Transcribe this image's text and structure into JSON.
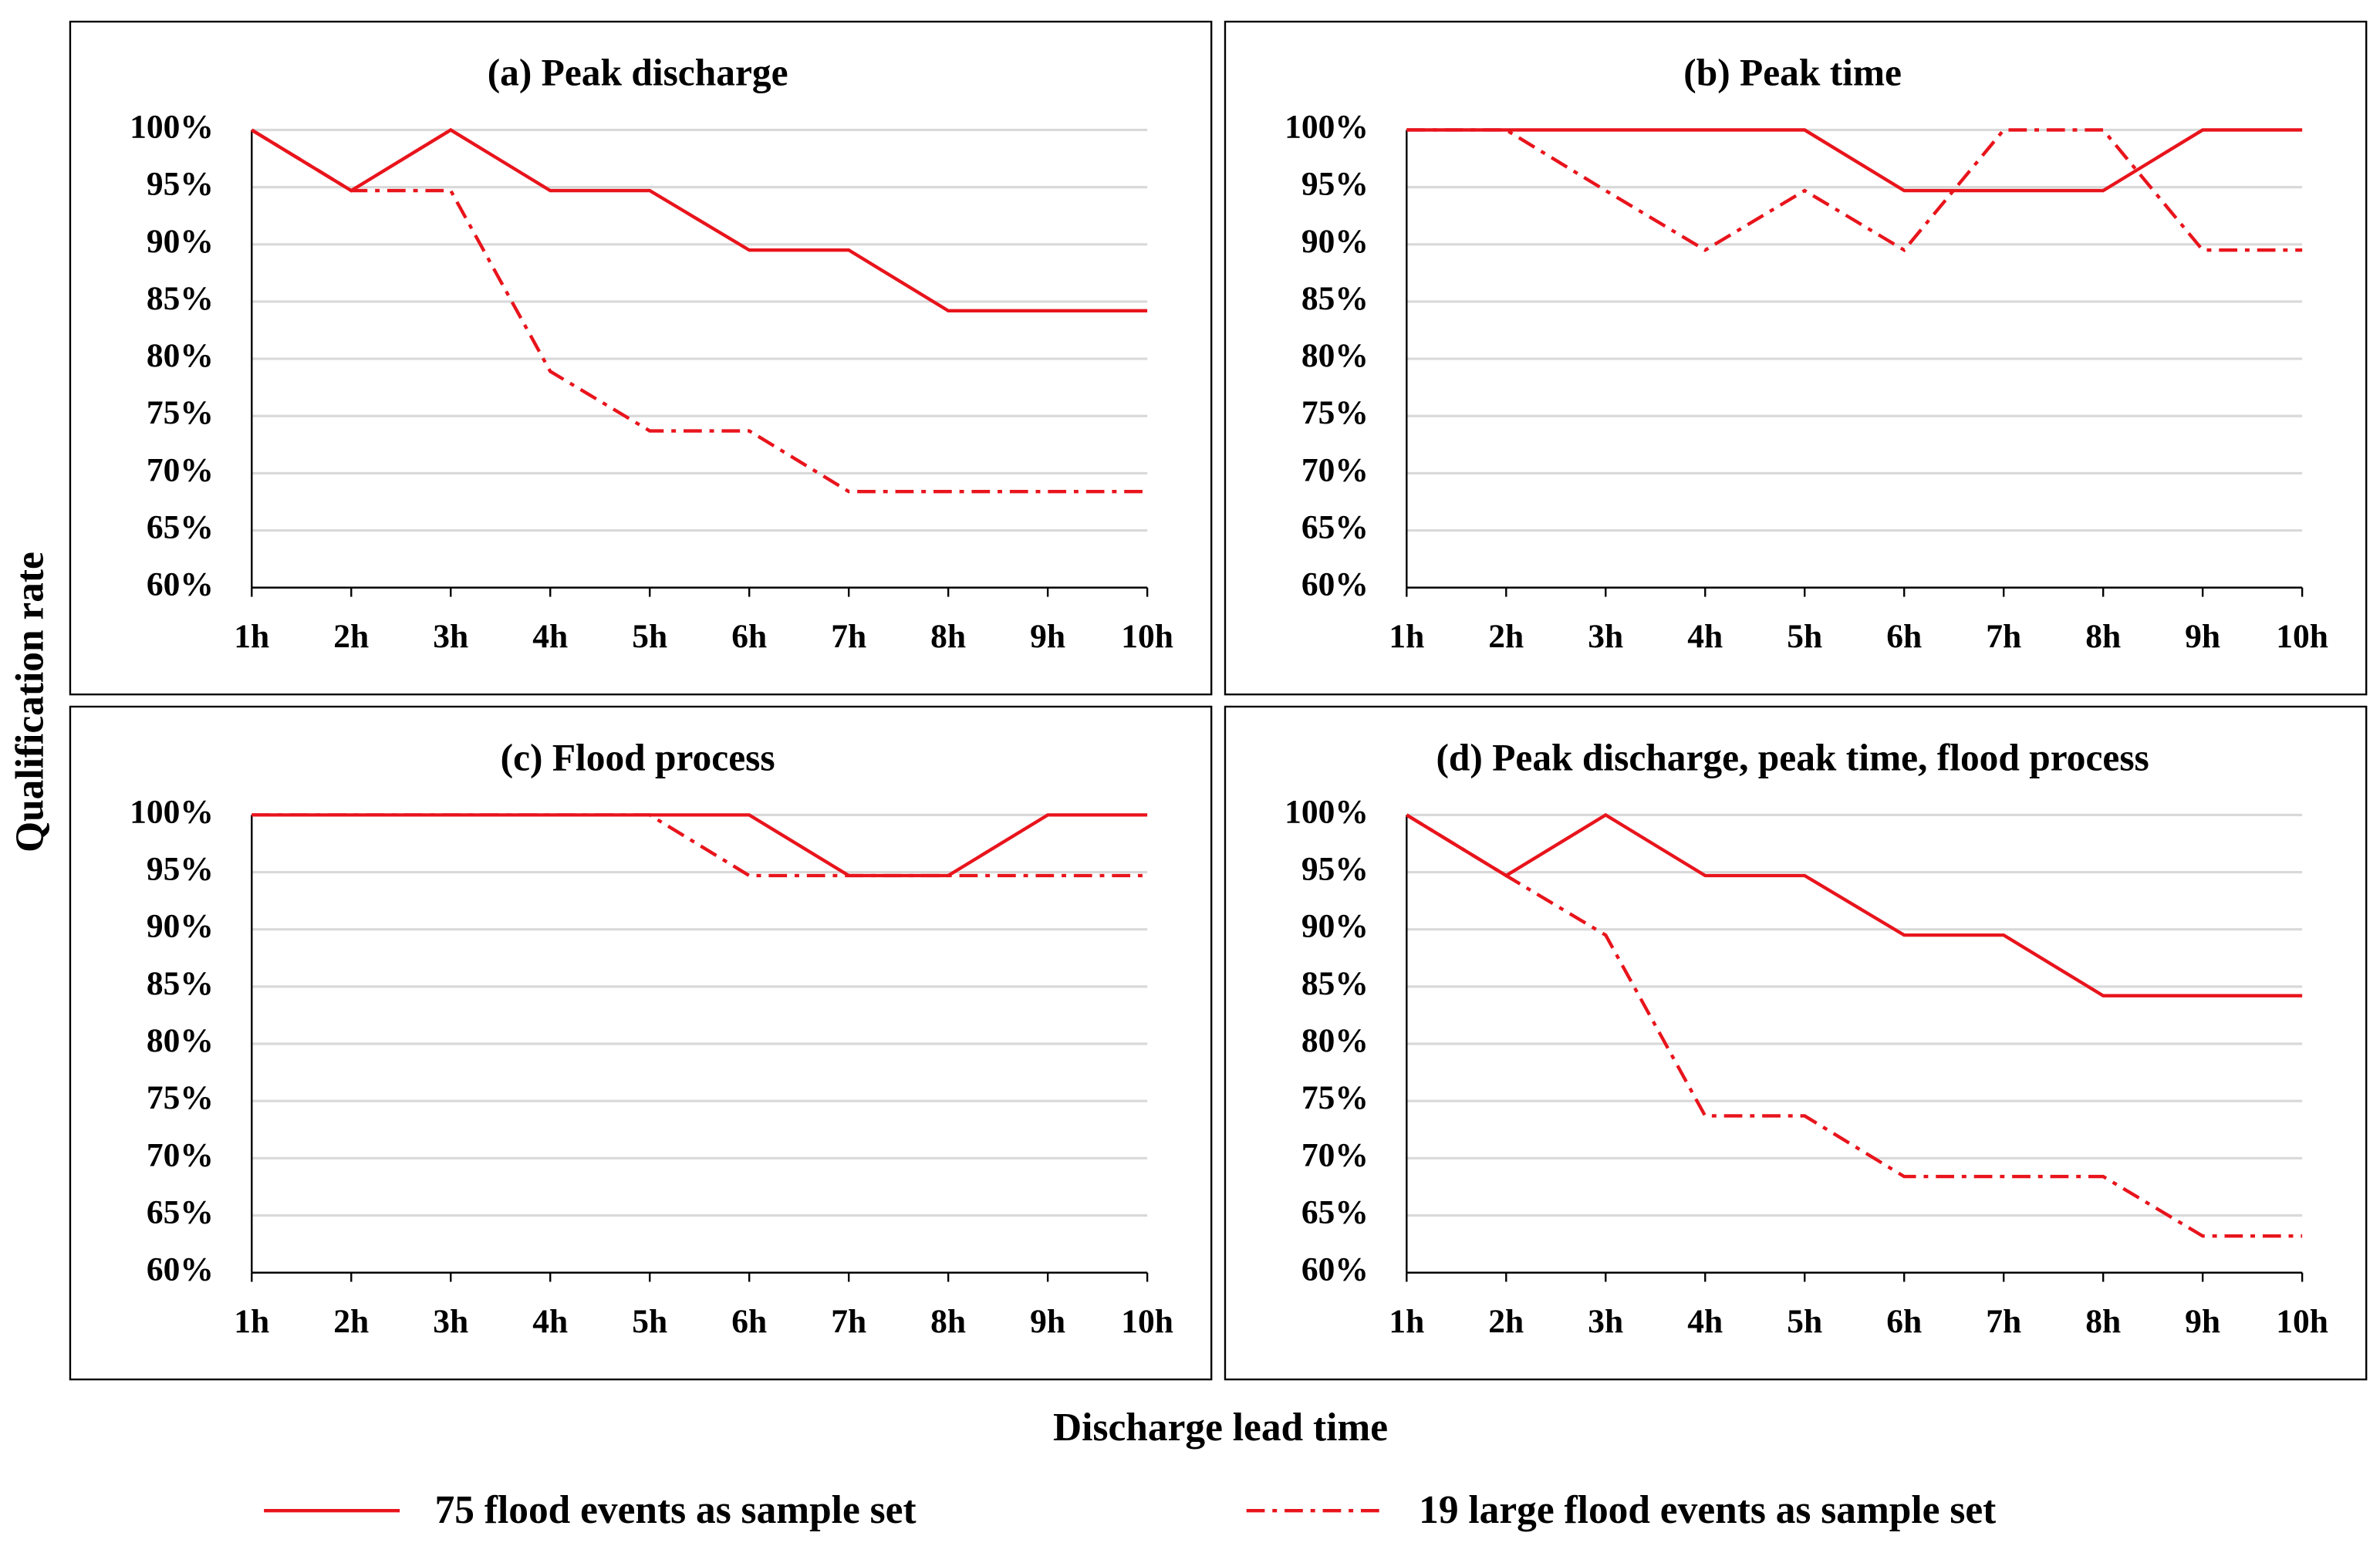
{
  "x_label": "Discharge lead time",
  "y_label": "Qualification rate",
  "chart_data": [
    {
      "type": "line",
      "title": "(a) Peak discharge",
      "categories": [
        "1h",
        "2h",
        "3h",
        "4h",
        "5h",
        "6h",
        "7h",
        "8h",
        "9h",
        "10h"
      ],
      "ylim": [
        60,
        100
      ],
      "yticks": [
        {
          "value": 60,
          "label": "60%"
        },
        {
          "value": 65,
          "label": "65%"
        },
        {
          "value": 70,
          "label": "70%"
        },
        {
          "value": 75,
          "label": "75%"
        },
        {
          "value": 80,
          "label": "80%"
        },
        {
          "value": 85,
          "label": "85%"
        },
        {
          "value": 90,
          "label": "90%"
        },
        {
          "value": 95,
          "label": "95%"
        },
        {
          "value": 100,
          "label": "100%"
        }
      ],
      "grid": true,
      "series": [
        {
          "name": "75 flood events as sample set",
          "color": "#e8141c",
          "dash": "solid",
          "values": [
            100,
            94.7,
            100,
            94.7,
            94.7,
            89.5,
            89.5,
            84.2,
            84.2,
            84.2
          ]
        },
        {
          "name": "19 large flood events as sample set",
          "color": "#e8141c",
          "dash": "dashdot",
          "values": [
            100,
            94.7,
            94.7,
            78.9,
            73.7,
            73.7,
            68.4,
            68.4,
            68.4,
            68.4
          ]
        }
      ]
    },
    {
      "type": "line",
      "title": "(b) Peak time",
      "categories": [
        "1h",
        "2h",
        "3h",
        "4h",
        "5h",
        "6h",
        "7h",
        "8h",
        "9h",
        "10h"
      ],
      "ylim": [
        60,
        100
      ],
      "yticks": [
        {
          "value": 60,
          "label": "60%"
        },
        {
          "value": 65,
          "label": "65%"
        },
        {
          "value": 70,
          "label": "70%"
        },
        {
          "value": 75,
          "label": "75%"
        },
        {
          "value": 80,
          "label": "80%"
        },
        {
          "value": 85,
          "label": "85%"
        },
        {
          "value": 90,
          "label": "90%"
        },
        {
          "value": 95,
          "label": "95%"
        },
        {
          "value": 100,
          "label": "100%"
        }
      ],
      "grid": true,
      "series": [
        {
          "color": "#e8141c",
          "dash": "solid",
          "values": [
            100,
            100,
            100,
            100,
            100,
            94.7,
            94.7,
            94.7,
            100,
            100
          ]
        },
        {
          "color": "#e8141c",
          "dash": "dashdot",
          "values": [
            100,
            100,
            94.7,
            89.5,
            94.7,
            89.5,
            100,
            100,
            89.5,
            89.5
          ]
        }
      ]
    },
    {
      "type": "line",
      "title": "(c) Flood process",
      "categories": [
        "1h",
        "2h",
        "3h",
        "4h",
        "5h",
        "6h",
        "7h",
        "8h",
        "9h",
        "10h"
      ],
      "ylim": [
        60,
        100
      ],
      "yticks": [
        {
          "value": 60,
          "label": "60%"
        },
        {
          "value": 65,
          "label": "65%"
        },
        {
          "value": 70,
          "label": "70%"
        },
        {
          "value": 75,
          "label": "75%"
        },
        {
          "value": 80,
          "label": "80%"
        },
        {
          "value": 85,
          "label": "85%"
        },
        {
          "value": 90,
          "label": "90%"
        },
        {
          "value": 95,
          "label": "95%"
        },
        {
          "value": 100,
          "label": "100%"
        }
      ],
      "grid": true,
      "series": [
        {
          "color": "#e8141c",
          "dash": "solid",
          "values": [
            100,
            100,
            100,
            100,
            100,
            100,
            94.7,
            94.7,
            100,
            100
          ]
        },
        {
          "color": "#e8141c",
          "dash": "dashdot",
          "values": [
            100,
            100,
            100,
            100,
            100,
            94.7,
            94.7,
            94.7,
            94.7,
            94.7
          ]
        }
      ]
    },
    {
      "type": "line",
      "title": "(d) Peak discharge, peak time, flood process",
      "categories": [
        "1h",
        "2h",
        "3h",
        "4h",
        "5h",
        "6h",
        "7h",
        "8h",
        "9h",
        "10h"
      ],
      "ylim": [
        60,
        100
      ],
      "yticks": [
        {
          "value": 60,
          "label": "60%"
        },
        {
          "value": 65,
          "label": "65%"
        },
        {
          "value": 70,
          "label": "70%"
        },
        {
          "value": 75,
          "label": "75%"
        },
        {
          "value": 80,
          "label": "80%"
        },
        {
          "value": 85,
          "label": "85%"
        },
        {
          "value": 90,
          "label": "90%"
        },
        {
          "value": 95,
          "label": "95%"
        },
        {
          "value": 100,
          "label": "100%"
        }
      ],
      "grid": true,
      "series": [
        {
          "color": "#e8141c",
          "dash": "solid",
          "values": [
            100,
            94.7,
            100,
            94.7,
            94.7,
            89.5,
            89.5,
            84.2,
            84.2,
            84.2
          ]
        },
        {
          "color": "#e8141c",
          "dash": "dashdot",
          "values": [
            100,
            94.7,
            89.5,
            73.7,
            73.7,
            68.4,
            68.4,
            68.4,
            63.2,
            63.2
          ]
        }
      ]
    }
  ]
}
